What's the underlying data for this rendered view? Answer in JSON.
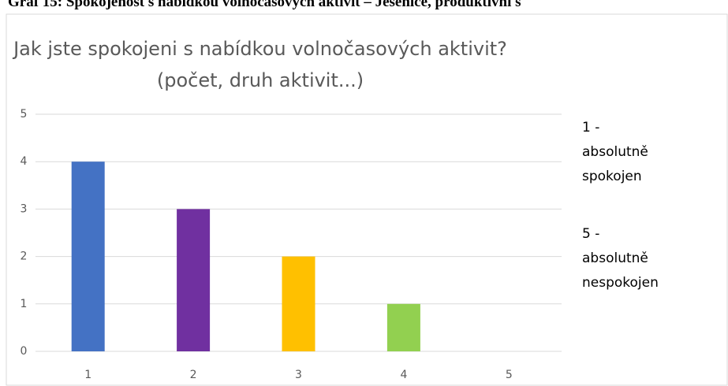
{
  "caption": "Graf 15: Spokojenost s nabídkou volnočasových aktivit – Ješenice, produktivní s",
  "chart_data": {
    "type": "bar",
    "title": [
      "Jak jste spokojeni s nabídkou volnočasových aktivit?",
      "(počet, druh aktivit...)"
    ],
    "categories": [
      "1",
      "2",
      "3",
      "4",
      "5"
    ],
    "values": [
      4,
      3,
      2,
      1,
      0
    ],
    "colors": [
      "#4472c4",
      "#7030a0",
      "#ffc000",
      "#92d050"
    ],
    "ylim": [
      0,
      5
    ],
    "yticks": [
      0,
      1,
      2,
      3,
      4,
      5
    ],
    "grid": true,
    "annotations": [
      [
        "1 -",
        "absolutně",
        "spokojen"
      ],
      [
        "5 -",
        "absolutně",
        "nespokojen"
      ]
    ]
  }
}
